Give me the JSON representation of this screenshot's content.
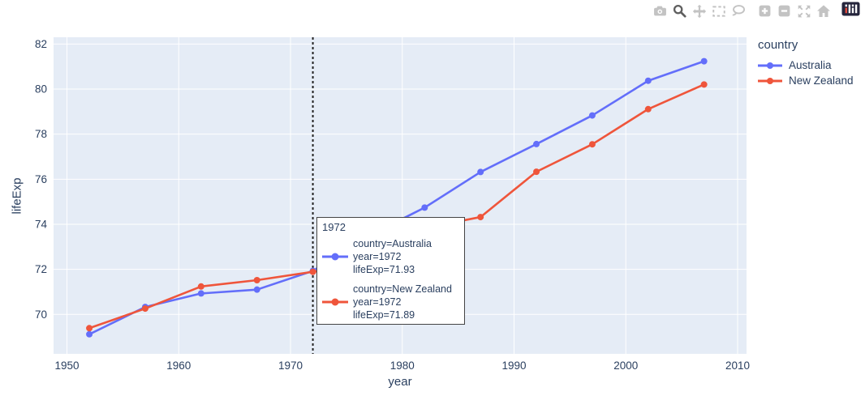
{
  "modebar": {
    "icons": [
      {
        "name": "camera"
      },
      {
        "name": "zoom",
        "active": true
      },
      {
        "name": "pan"
      },
      {
        "name": "box-select"
      },
      {
        "name": "lasso-select"
      },
      {
        "name": "zoom-in"
      },
      {
        "name": "zoom-out"
      },
      {
        "name": "autoscale"
      },
      {
        "name": "reset-axes"
      },
      {
        "name": "plotly-logo"
      }
    ]
  },
  "chart_data": {
    "type": "line",
    "title": "",
    "xlabel": "year",
    "ylabel": "lifeExp",
    "x": [
      1952,
      1957,
      1962,
      1967,
      1972,
      1977,
      1982,
      1987,
      1992,
      1997,
      2002,
      2007
    ],
    "series": [
      {
        "name": "Australia",
        "color": "#636efa",
        "values": [
          69.12,
          70.33,
          70.93,
          71.1,
          71.93,
          73.49,
          74.74,
          76.32,
          77.56,
          78.83,
          80.37,
          81.235
        ]
      },
      {
        "name": "New Zealand",
        "color": "#ef553b",
        "values": [
          69.39,
          70.26,
          71.24,
          71.52,
          71.89,
          72.22,
          73.84,
          74.32,
          76.33,
          77.55,
          79.11,
          80.204
        ]
      }
    ],
    "x_ticks": [
      1950,
      1960,
      1970,
      1980,
      1990,
      2000,
      2010
    ],
    "y_ticks": [
      70,
      72,
      74,
      76,
      78,
      80,
      82
    ],
    "x_range": [
      1948.8,
      2010.8
    ],
    "y_range": [
      68.25,
      82.3
    ],
    "grid": true,
    "legend_position": "right",
    "legend_title": "country",
    "vline": {
      "x": 1972,
      "style": "dotted",
      "color": "#222222"
    },
    "plot_bg": "#e5ecf6",
    "grid_color": "#ffffff",
    "text_color": "#2a3f5f"
  },
  "legend": {
    "title": "country",
    "items": [
      {
        "label": "Australia",
        "color": "#636efa"
      },
      {
        "label": "New Zealand",
        "color": "#ef553b"
      }
    ]
  },
  "tooltip": {
    "title": "1972",
    "entries": [
      {
        "color": "#636efa",
        "lines": [
          "country=Australia",
          "year=1972",
          "lifeExp=71.93"
        ]
      },
      {
        "color": "#ef553b",
        "lines": [
          "country=New Zealand",
          "year=1972",
          "lifeExp=71.89"
        ]
      }
    ]
  }
}
